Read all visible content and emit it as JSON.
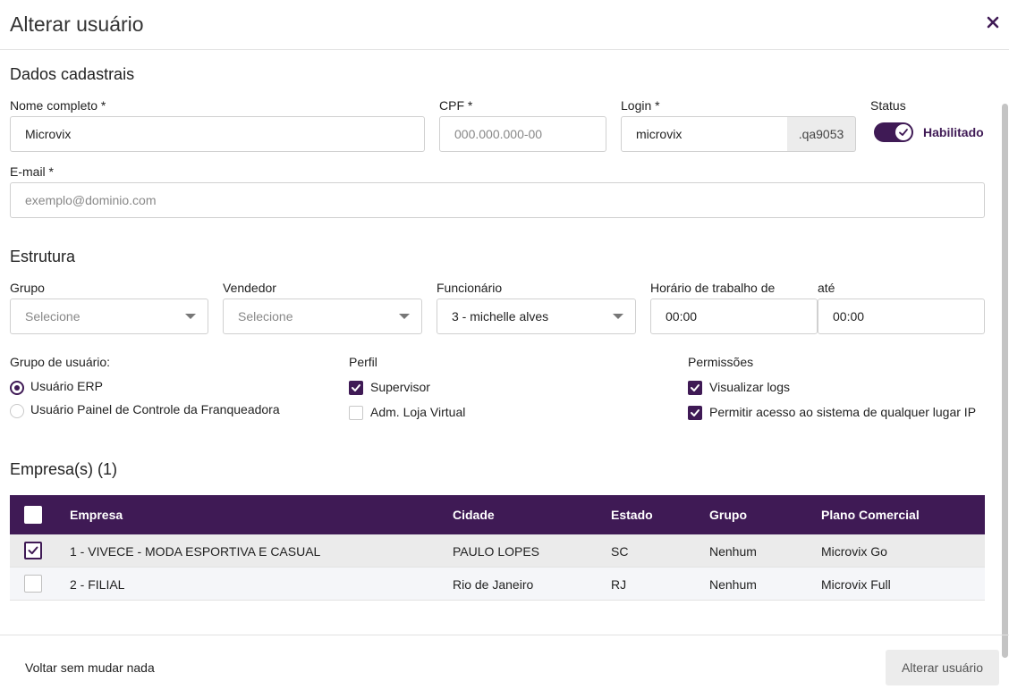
{
  "header": {
    "title": "Alterar usuário"
  },
  "dados": {
    "section_title": "Dados cadastrais",
    "nome_label": "Nome completo *",
    "nome_value": "Microvix",
    "cpf_label": "CPF *",
    "cpf_placeholder": "000.000.000-00",
    "login_label": "Login *",
    "login_value": "microvix",
    "login_suffix": ".qa9053",
    "status_label": "Status",
    "status_text": "Habilitado",
    "email_label": "E-mail *",
    "email_placeholder": "exemplo@dominio.com"
  },
  "estrutura": {
    "section_title": "Estrutura",
    "grupo_label": "Grupo",
    "grupo_value": "Selecione",
    "vendedor_label": "Vendedor",
    "vendedor_value": "Selecione",
    "funcionario_label": "Funcionário",
    "funcionario_value": "3 - michelle alves",
    "horario_de_label": "Horário de trabalho de",
    "horario_de_value": "00:00",
    "horario_ate_label": "até",
    "horario_ate_value": "00:00"
  },
  "grupo_usuario": {
    "label": "Grupo de usuário:",
    "options": [
      "Usuário ERP",
      "Usuário Painel de Controle da Franqueadora"
    ]
  },
  "perfil": {
    "label": "Perfil",
    "options": [
      "Supervisor",
      "Adm. Loja Virtual"
    ]
  },
  "permissoes": {
    "label": "Permissões",
    "options": [
      "Visualizar logs",
      "Permitir acesso ao sistema de qualquer lugar IP"
    ]
  },
  "empresas": {
    "title": "Empresa(s) (1)",
    "columns": [
      "Empresa",
      "Cidade",
      "Estado",
      "Grupo",
      "Plano Comercial"
    ],
    "rows": [
      [
        "1 - VIVECE - MODA ESPORTIVA E CASUAL",
        "PAULO LOPES",
        "SC",
        "Nenhum",
        "Microvix Go"
      ],
      [
        "2 - FILIAL",
        "Rio de Janeiro",
        "RJ",
        "Nenhum",
        "Microvix Full"
      ]
    ]
  },
  "footer": {
    "back_label": "Voltar sem mudar nada",
    "submit_label": "Alterar usuário"
  },
  "colors": {
    "accent": "#3f1a55"
  },
  "icons": [
    "close-icon",
    "check-icon",
    "chevron-down-icon"
  ]
}
